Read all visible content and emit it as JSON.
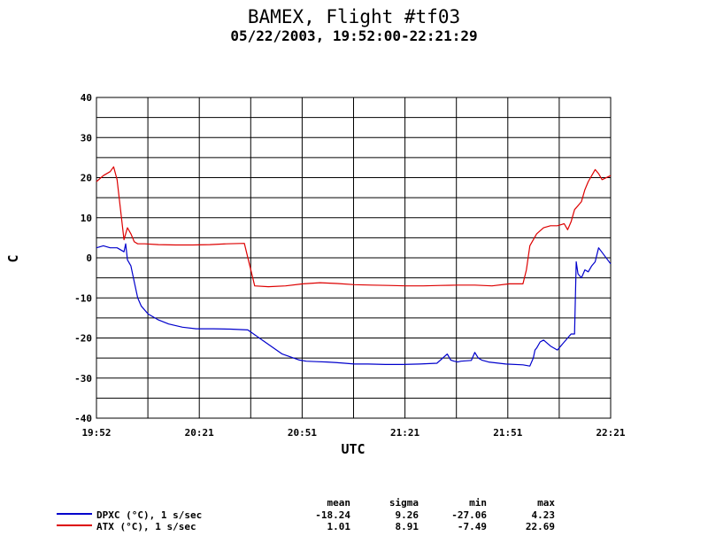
{
  "chart_data": {
    "type": "line",
    "title": "BAMEX, Flight #tf03",
    "subtitle": "05/22/2003, 19:52:00-22:21:29",
    "xlabel": "UTC",
    "ylabel": "C",
    "ylim": [
      -40,
      40
    ],
    "y_ticks": [
      "40",
      "30",
      "20",
      "10",
      "0",
      "-10",
      "-20",
      "-30",
      "-40"
    ],
    "x_ticks": [
      "19:52",
      "20:21",
      "20:51",
      "21:21",
      "21:51",
      "22:21"
    ],
    "x_start_minute": 1192,
    "x_end_minute": 1341.5,
    "grid": true,
    "stats_headers": [
      "mean",
      "sigma",
      "min",
      "max"
    ],
    "series": [
      {
        "name": "DPXC (°C), 1 s/sec",
        "color": "#0000cc",
        "stats": [
          "-18.24",
          "9.26",
          "-27.06",
          "4.23"
        ],
        "x": [
          1192,
          1194,
          1196,
          1198,
          1200,
          1200.5,
          1201,
          1202,
          1203,
          1204,
          1205,
          1207,
          1210,
          1213,
          1217,
          1221,
          1226,
          1231,
          1236,
          1241,
          1246,
          1251,
          1253,
          1256,
          1259,
          1263,
          1267,
          1271,
          1276,
          1281,
          1286,
          1291,
          1294,
          1295,
          1296,
          1297,
          1298,
          1301,
          1302,
          1303,
          1304,
          1306,
          1311,
          1316,
          1318,
          1319,
          1319.5,
          1320,
          1321,
          1322,
          1324,
          1326,
          1329,
          1330,
          1331,
          1331.5,
          1332,
          1333,
          1334,
          1335,
          1336,
          1337,
          1338,
          1341.5
        ],
        "y": [
          2.5,
          3,
          2.5,
          2.5,
          1.5,
          3.5,
          -0.5,
          -2,
          -6,
          -10,
          -12,
          -14,
          -15.5,
          -16.5,
          -17.3,
          -17.7,
          -17.7,
          -17.8,
          -18,
          -21,
          -24,
          -25.5,
          -25.8,
          -25.9,
          -26,
          -26.2,
          -26.5,
          -26.5,
          -26.6,
          -26.6,
          -26.5,
          -26.3,
          -24,
          -25.5,
          -25.8,
          -26,
          -25.8,
          -25.6,
          -23.6,
          -25,
          -25.5,
          -26,
          -26.5,
          -26.7,
          -27,
          -25,
          -23,
          -22.5,
          -21,
          -20.5,
          -22,
          -23,
          -20,
          -19,
          -19,
          -1,
          -4,
          -5,
          -3,
          -3.5,
          -2,
          -1,
          2.5,
          -1.5
        ]
      },
      {
        "name": "ATX (°C), 1 s/sec",
        "color": "#dd0000",
        "stats": [
          "1.01",
          "8.91",
          "-7.49",
          "22.69"
        ],
        "x": [
          1192,
          1194,
          1196,
          1197,
          1198,
          1199,
          1200,
          1201,
          1202,
          1203,
          1204,
          1206,
          1210,
          1215,
          1220,
          1225,
          1230,
          1235,
          1238,
          1242,
          1247,
          1252,
          1257,
          1262,
          1267,
          1272,
          1277,
          1282,
          1287,
          1292,
          1297,
          1302,
          1307,
          1312,
          1316,
          1317,
          1318,
          1320,
          1322,
          1324,
          1326,
          1328,
          1329,
          1330,
          1331,
          1333,
          1334,
          1335,
          1337,
          1338,
          1339,
          1341.5
        ],
        "y": [
          19,
          20.5,
          21.5,
          22.7,
          19.5,
          12,
          4.5,
          7.5,
          6,
          4,
          3.5,
          3.5,
          3.3,
          3.2,
          3.2,
          3.3,
          3.5,
          3.6,
          -7,
          -7.2,
          -7,
          -6.5,
          -6.2,
          -6.4,
          -6.7,
          -6.8,
          -6.9,
          -7,
          -7,
          -6.9,
          -6.8,
          -6.8,
          -7,
          -6.5,
          -6.5,
          -3,
          3,
          6,
          7.5,
          8,
          8,
          8.5,
          7,
          9,
          12,
          14,
          17,
          19,
          22,
          21,
          19.5,
          20.5
        ]
      }
    ]
  }
}
